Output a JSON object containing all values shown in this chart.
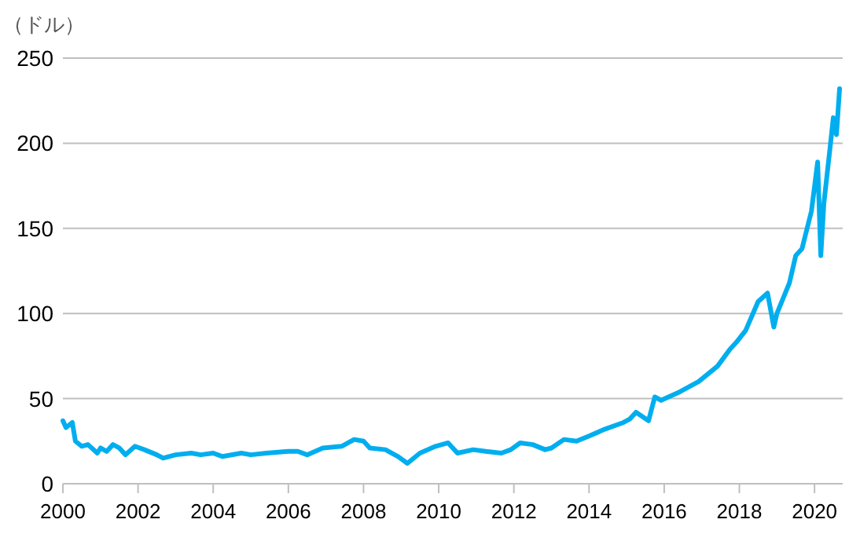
{
  "chart_data": {
    "type": "line",
    "ylabel": "（ドル）",
    "x": [
      "2000-01",
      "2000-02",
      "2000-04",
      "2000-05",
      "2000-07",
      "2000-09",
      "2000-12",
      "2001-01",
      "2001-03",
      "2001-05",
      "2001-07",
      "2001-09",
      "2001-12",
      "2002-03",
      "2002-07",
      "2002-09",
      "2003-01",
      "2003-06",
      "2003-09",
      "2004-01",
      "2004-04",
      "2004-10",
      "2005-01",
      "2005-06",
      "2006-01",
      "2006-04",
      "2006-07",
      "2006-12",
      "2007-06",
      "2007-10",
      "2008-01",
      "2008-03",
      "2008-08",
      "2008-12",
      "2009-03",
      "2009-07",
      "2009-12",
      "2010-04",
      "2010-07",
      "2010-12",
      "2011-04",
      "2011-09",
      "2011-12",
      "2012-03",
      "2012-07",
      "2012-11",
      "2013-01",
      "2013-05",
      "2013-09",
      "2014-01",
      "2014-06",
      "2014-12",
      "2015-02",
      "2015-04",
      "2015-08",
      "2015-10",
      "2015-12",
      "2016-06",
      "2016-09",
      "2016-12",
      "2017-06",
      "2017-10",
      "2017-12",
      "2018-03",
      "2018-07",
      "2018-10",
      "2018-12",
      "2019-01",
      "2019-05",
      "2019-07",
      "2019-09",
      "2019-12",
      "2020-02",
      "2020-03",
      "2020-04",
      "2020-06",
      "2020-07",
      "2020-08",
      "2020-09"
    ],
    "values": [
      37,
      33,
      36,
      25,
      22,
      23,
      18,
      21,
      19,
      23,
      21,
      17,
      22,
      20,
      17,
      15,
      17,
      18,
      17,
      18,
      16,
      18,
      17,
      18,
      19,
      19,
      17,
      21,
      22,
      26,
      25,
      21,
      20,
      16,
      12,
      18,
      22,
      24,
      18,
      20,
      19,
      18,
      20,
      24,
      23,
      20,
      21,
      26,
      25,
      28,
      32,
      36,
      38,
      42,
      37,
      51,
      49,
      54,
      57,
      60,
      69,
      79,
      83,
      90,
      107,
      112,
      92,
      100,
      118,
      134,
      138,
      160,
      189,
      134,
      165,
      198,
      215,
      205,
      232
    ],
    "color": "#00aeef",
    "xlim": [
      "2000-01",
      "2020-10"
    ],
    "xticks": [
      "2000",
      "2002",
      "2004",
      "2006",
      "2008",
      "2010",
      "2012",
      "2014",
      "2016",
      "2018",
      "2020"
    ],
    "ylim": [
      0,
      250
    ],
    "yticks": [
      0,
      50,
      100,
      150,
      200,
      250
    ],
    "grid": "y",
    "marker": "none",
    "line_style": "solid"
  }
}
